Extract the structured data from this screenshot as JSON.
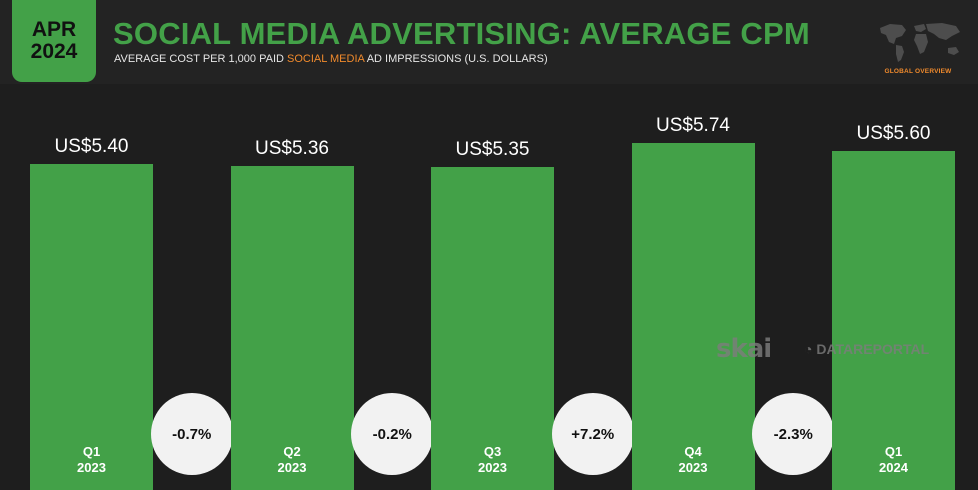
{
  "header": {
    "badge_month": "APR",
    "badge_year": "2024",
    "title": "SOCIAL MEDIA ADVERTISING: AVERAGE CPM",
    "subtitle_before": "AVERAGE COST PER 1,000 PAID ",
    "subtitle_highlight": "SOCIAL MEDIA",
    "subtitle_after": " AD IMPRESSIONS (U.S. DOLLARS)",
    "global_label": "GLOBAL OVERVIEW"
  },
  "watermarks": {
    "skai": "skai",
    "datareportal": "DATAREPORTAL"
  },
  "colors": {
    "bar": "#43a148",
    "accent": "#f08a2c",
    "background": "#1e1e1e"
  },
  "chart_data": {
    "type": "bar",
    "categories": [
      "Q1 2023",
      "Q2 2023",
      "Q3 2023",
      "Q4 2023",
      "Q1 2024"
    ],
    "category_lines": [
      [
        "Q1",
        "2023"
      ],
      [
        "Q2",
        "2023"
      ],
      [
        "Q3",
        "2023"
      ],
      [
        "Q4",
        "2023"
      ],
      [
        "Q1",
        "2024"
      ]
    ],
    "values": [
      5.4,
      5.36,
      5.35,
      5.74,
      5.6
    ],
    "value_labels": [
      "US$5.40",
      "US$5.36",
      "US$5.35",
      "US$5.74",
      "US$5.60"
    ],
    "changes": [
      "-0.7%",
      "-0.2%",
      "+7.2%",
      "-2.3%"
    ],
    "ylim": [
      0,
      5.74
    ],
    "xlabel": "",
    "ylabel": "",
    "grid": false
  }
}
